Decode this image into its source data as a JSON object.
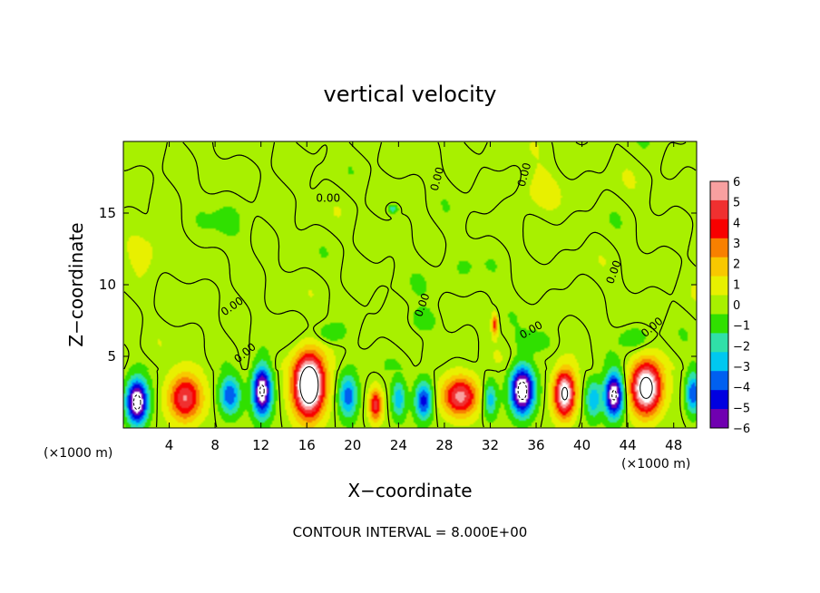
{
  "chart_data": {
    "type": "heatmap",
    "title": "vertical velocity",
    "xlabel": "X−coordinate",
    "ylabel": "Z−coordinate",
    "x_unit_left": "(×1000 m)",
    "x_unit_right": "(×1000 m)",
    "xlim": [
      0,
      50
    ],
    "ylim": [
      0,
      20
    ],
    "x_ticks": [
      4,
      8,
      12,
      16,
      20,
      24,
      28,
      32,
      36,
      40,
      44,
      48
    ],
    "x_tick_labels": [
      "4",
      "8",
      "12",
      "16",
      "20",
      "24",
      "28",
      "32",
      "36",
      "40",
      "44",
      "48"
    ],
    "y_ticks": [
      5,
      10,
      15
    ],
    "y_tick_labels": [
      "5",
      "10",
      "15"
    ],
    "contour_label": "0.00",
    "contour_interval_text": "CONTOUR INTERVAL = 8.000E+00",
    "colorbar": {
      "ticks": [
        6,
        5,
        4,
        3,
        2,
        1,
        0,
        -1,
        -2,
        -3,
        -4,
        -5,
        -6
      ],
      "tick_labels": [
        "6",
        "5",
        "4",
        "3",
        "2",
        "1",
        "0",
        "−1",
        "−2",
        "−3",
        "−4",
        "−5",
        "−6"
      ],
      "colors": [
        "#f8a0a0",
        "#f03030",
        "#f80000",
        "#f88000",
        "#f8c800",
        "#e8f000",
        "#a8f000",
        "#30e000",
        "#30e0a8",
        "#00c8f0",
        "#0060f0",
        "#0000e0",
        "#7000b0"
      ]
    },
    "cells": [
      {
        "x": 1.2,
        "z": 1.8,
        "sx": 0.9,
        "sz": 1.5,
        "amp": -8.5
      },
      {
        "x": 5.4,
        "z": 2.1,
        "sx": 1.4,
        "sz": 1.6,
        "amp": 5.6
      },
      {
        "x": 9.3,
        "z": 2.3,
        "sx": 0.9,
        "sz": 1.3,
        "amp": -4.4
      },
      {
        "x": 12.1,
        "z": 2.6,
        "sx": 0.8,
        "sz": 1.7,
        "amp": -8.0
      },
      {
        "x": 16.2,
        "z": 3.0,
        "sx": 1.3,
        "sz": 2.1,
        "amp": 11.0
      },
      {
        "x": 19.6,
        "z": 2.2,
        "sx": 0.8,
        "sz": 1.5,
        "amp": -4.2
      },
      {
        "x": 22.0,
        "z": 1.6,
        "sx": 0.55,
        "sz": 1.1,
        "amp": 4.8
      },
      {
        "x": 24.0,
        "z": 2.0,
        "sx": 0.6,
        "sz": 1.3,
        "amp": -3.2
      },
      {
        "x": 26.2,
        "z": 1.9,
        "sx": 0.75,
        "sz": 1.3,
        "amp": -5.0
      },
      {
        "x": 29.4,
        "z": 2.2,
        "sx": 1.5,
        "sz": 1.3,
        "amp": 6.0
      },
      {
        "x": 32.0,
        "z": 2.0,
        "sx": 0.6,
        "sz": 1.2,
        "amp": -3.0
      },
      {
        "x": 34.8,
        "z": 2.6,
        "sx": 1.0,
        "sz": 1.6,
        "amp": -8.8
      },
      {
        "x": 38.5,
        "z": 2.4,
        "sx": 0.9,
        "sz": 1.6,
        "amp": 8.2
      },
      {
        "x": 41.0,
        "z": 2.0,
        "sx": 0.7,
        "sz": 1.3,
        "amp": -3.4
      },
      {
        "x": 42.8,
        "z": 2.3,
        "sx": 0.8,
        "sz": 1.5,
        "amp": -8.0
      },
      {
        "x": 45.6,
        "z": 2.8,
        "sx": 1.3,
        "sz": 1.8,
        "amp": 9.0
      },
      {
        "x": 49.7,
        "z": 2.4,
        "sx": 0.6,
        "sz": 1.4,
        "amp": -4.5
      },
      {
        "x": 32.4,
        "z": 7.2,
        "sx": 0.25,
        "sz": 0.7,
        "amp": 4.0
      },
      {
        "x": 18.0,
        "z": 6.6,
        "sx": 1.2,
        "sz": 0.7,
        "amp": -1.4
      },
      {
        "x": 26.0,
        "z": 7.5,
        "sx": 1.2,
        "sz": 0.8,
        "amp": -1.3
      },
      {
        "x": 36.0,
        "z": 6.0,
        "sx": 1.5,
        "sz": 0.8,
        "amp": -1.3
      },
      {
        "x": 44.5,
        "z": 6.3,
        "sx": 1.2,
        "sz": 0.7,
        "amp": -1.2
      },
      {
        "x": 23.5,
        "z": 15.3,
        "sx": 0.4,
        "sz": 0.3,
        "amp": -2.5
      },
      {
        "x": 36.0,
        "z": 16.5,
        "sx": 2.0,
        "sz": 1.5,
        "amp": 0.9
      },
      {
        "x": 2.0,
        "z": 12.5,
        "sx": 2.0,
        "sz": 1.5,
        "amp": 0.9
      },
      {
        "x": 9.0,
        "z": 14.0,
        "sx": 3.0,
        "sz": 3.0,
        "amp": -0.3
      },
      {
        "x": 30.0,
        "z": 12.0,
        "sx": 4.0,
        "sz": 2.5,
        "amp": -0.3
      }
    ]
  }
}
